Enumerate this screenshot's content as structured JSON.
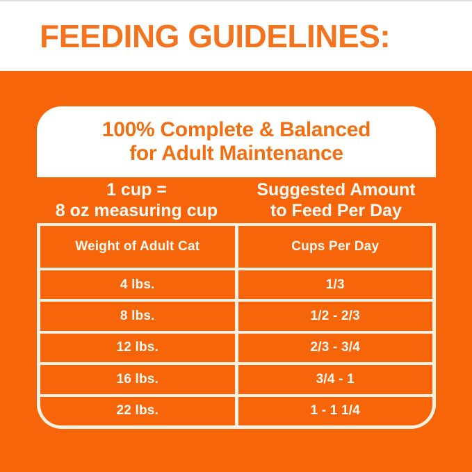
{
  "colors": {
    "orange": "#F7650A",
    "title_orange": "#F4731E",
    "heading_orange": "#F26E13",
    "cell_text": "#FCFAF5",
    "grid_white": "#F9F2E4",
    "panel_white": "#FFFFFF"
  },
  "header": {
    "title": "FEEDING GUIDELINES:"
  },
  "panel": {
    "heading_line1": "100% Complete & Balanced",
    "heading_line2": "for Adult Maintenance",
    "subheader": {
      "left_line1": "1 cup =",
      "left_line2": "8 oz measuring cup",
      "right_line1": "Suggested Amount",
      "right_line2": "to Feed Per Day"
    },
    "table": {
      "columns": [
        "Weight of Adult Cat",
        "Cups Per Day"
      ],
      "rows": [
        {
          "weight": "4 lbs.",
          "cups": "1/3"
        },
        {
          "weight": "8 lbs.",
          "cups": "1/2 - 2/3"
        },
        {
          "weight": "12 lbs.",
          "cups": "2/3 - 3/4"
        },
        {
          "weight": "16 lbs.",
          "cups": "3/4 - 1"
        },
        {
          "weight": "22 lbs.",
          "cups": "1 - 1 1/4"
        }
      ]
    }
  }
}
